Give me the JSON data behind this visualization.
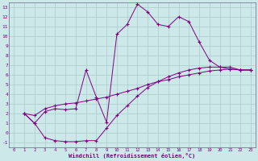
{
  "xlabel": "Windchill (Refroidissement éolien,°C)",
  "bg_color": "#cce8e8",
  "grid_color": "#aacccc",
  "line_color": "#800080",
  "xlim_min": -0.5,
  "xlim_max": 23.5,
  "ylim_min": -1.5,
  "ylim_max": 13.5,
  "xticks": [
    0,
    1,
    2,
    3,
    4,
    5,
    6,
    7,
    8,
    9,
    10,
    11,
    12,
    13,
    14,
    15,
    16,
    17,
    18,
    19,
    20,
    21,
    22,
    23
  ],
  "yticks": [
    -1,
    0,
    1,
    2,
    3,
    4,
    5,
    6,
    7,
    8,
    9,
    10,
    11,
    12,
    13
  ],
  "line1_x": [
    1,
    2,
    3,
    4,
    5,
    6,
    7,
    8,
    9,
    10,
    11,
    12,
    13,
    14,
    15,
    16,
    17,
    18,
    19,
    20,
    21,
    22,
    23
  ],
  "line1_y": [
    2,
    1,
    2.2,
    2.5,
    2.4,
    2.5,
    6.5,
    3.7,
    1.1,
    10.2,
    11.2,
    13.3,
    12.5,
    11.2,
    11.0,
    12.0,
    11.5,
    9.4,
    7.5,
    6.8,
    6.8,
    6.5,
    6.5
  ],
  "line2_x": [
    1,
    2,
    3,
    4,
    5,
    6,
    7,
    8,
    9,
    10,
    11,
    12,
    13,
    14,
    15,
    16,
    17,
    18,
    19,
    20,
    21,
    22,
    23
  ],
  "line2_y": [
    2.0,
    1.8,
    2.5,
    2.8,
    3.0,
    3.1,
    3.3,
    3.5,
    3.7,
    4.0,
    4.3,
    4.6,
    5.0,
    5.3,
    5.5,
    5.8,
    6.0,
    6.2,
    6.4,
    6.5,
    6.6,
    6.5,
    6.5
  ],
  "line3_x": [
    1,
    2,
    3,
    4,
    5,
    6,
    7,
    8,
    9,
    10,
    11,
    12,
    13,
    14,
    15,
    16,
    17,
    18,
    19,
    20,
    21,
    22,
    23
  ],
  "line3_y": [
    2.0,
    1.0,
    -0.5,
    -0.8,
    -0.9,
    -0.9,
    -0.8,
    -0.8,
    0.5,
    1.8,
    2.8,
    3.8,
    4.7,
    5.3,
    5.8,
    6.2,
    6.5,
    6.7,
    6.8,
    6.8,
    6.6,
    6.5,
    6.5
  ]
}
